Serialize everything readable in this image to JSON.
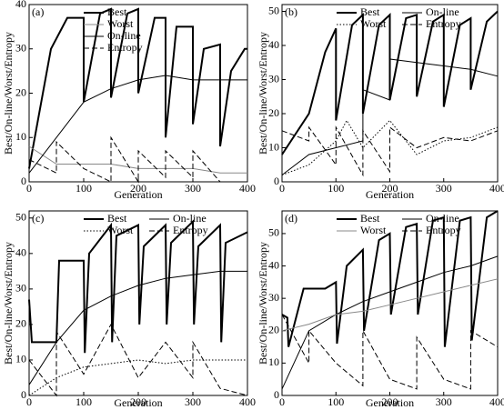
{
  "chart_data": [
    {
      "type": "line",
      "label": "(a)",
      "x_label": "Generation",
      "y_label": "Best/On-line/Worst/Entropy",
      "xlim": [
        0,
        400
      ],
      "ylim": [
        0,
        40
      ],
      "xticks": [
        0,
        100,
        200,
        300,
        400
      ],
      "yticks": [
        0,
        10,
        20,
        30,
        40
      ],
      "series": [
        {
          "name": "Best",
          "color": "#000000",
          "dash": "solid",
          "linewidth": 2,
          "x": [
            0,
            40,
            70,
            100,
            100,
            130,
            150,
            150,
            180,
            200,
            200,
            230,
            250,
            250,
            270,
            300,
            300,
            320,
            350,
            350,
            370,
            395,
            400
          ],
          "values": [
            3,
            30,
            37,
            37,
            18,
            38,
            39,
            19,
            38,
            39,
            20,
            37,
            37,
            10,
            35,
            35,
            13,
            30,
            31,
            8,
            25,
            30,
            30
          ]
        },
        {
          "name": "Worst",
          "color": "#888888",
          "dash": "solid",
          "linewidth": 1,
          "x": [
            0,
            50,
            100,
            150,
            200,
            250,
            300,
            350,
            400
          ],
          "values": [
            8,
            4,
            4,
            4,
            3,
            3,
            3,
            2,
            2
          ]
        },
        {
          "name": "On-line",
          "color": "#000000",
          "dash": "solid",
          "linewidth": 1,
          "x": [
            0,
            50,
            100,
            150,
            200,
            250,
            300,
            350,
            400
          ],
          "values": [
            2,
            10,
            18,
            21,
            23,
            24,
            23,
            23,
            23
          ]
        },
        {
          "name": "Entropy",
          "color": "#000000",
          "dash": "dashed",
          "linewidth": 1,
          "x": [
            0,
            50,
            50,
            100,
            150,
            150,
            200,
            200,
            250,
            250,
            300,
            300,
            350,
            400
          ],
          "values": [
            5,
            2,
            9,
            3,
            0,
            10,
            0,
            7,
            1,
            7,
            1,
            7,
            0,
            0
          ]
        }
      ]
    },
    {
      "type": "line",
      "label": "(b)",
      "x_label": "Generation",
      "y_label": "Best/On-line/Worst/Entropy",
      "xlim": [
        0,
        400
      ],
      "ylim": [
        0,
        52
      ],
      "xticks": [
        0,
        100,
        200,
        300,
        400
      ],
      "yticks": [
        0,
        10,
        20,
        30,
        40,
        50
      ],
      "series": [
        {
          "name": "Best",
          "color": "#000000",
          "dash": "solid",
          "linewidth": 2,
          "x": [
            0,
            50,
            80,
            100,
            100,
            130,
            150,
            150,
            180,
            200,
            200,
            230,
            250,
            250,
            280,
            300,
            300,
            330,
            350,
            350,
            380,
            400
          ],
          "values": [
            8,
            20,
            38,
            45,
            18,
            46,
            49,
            20,
            46,
            49,
            24,
            48,
            49,
            25,
            47,
            49,
            22,
            46,
            48,
            27,
            47,
            50
          ]
        },
        {
          "name": "On-line",
          "color": "#000000",
          "dash": "solid",
          "linewidth": 1,
          "x": [
            0,
            50,
            100,
            150,
            150,
            200,
            200,
            250,
            300,
            350,
            400
          ],
          "values": [
            2,
            8,
            10,
            12,
            27,
            24,
            36,
            35,
            34,
            33,
            31
          ]
        },
        {
          "name": "Worst",
          "color": "#000000",
          "dash": "dotted",
          "linewidth": 1,
          "x": [
            0,
            50,
            100,
            120,
            150,
            200,
            250,
            300,
            350,
            400
          ],
          "values": [
            2,
            5,
            12,
            18,
            10,
            18,
            8,
            12,
            13,
            16
          ]
        },
        {
          "name": "Entropy",
          "color": "#000000",
          "dash": "dashed",
          "linewidth": 1,
          "x": [
            0,
            50,
            50,
            100,
            100,
            150,
            150,
            200,
            200,
            250,
            300,
            350,
            400
          ],
          "values": [
            15,
            12,
            16,
            5,
            16,
            2,
            15,
            3,
            16,
            10,
            13,
            12,
            15
          ]
        }
      ]
    },
    {
      "type": "line",
      "label": "(c)",
      "x_label": "Generation",
      "y_label": "Best/On-line/Worst/Entropy",
      "xlim": [
        0,
        400
      ],
      "ylim": [
        0,
        52
      ],
      "xticks": [
        0,
        100,
        200,
        300,
        400
      ],
      "yticks": [
        0,
        10,
        20,
        30,
        40,
        50
      ],
      "series": [
        {
          "name": "Best",
          "color": "#000000",
          "dash": "solid",
          "linewidth": 2,
          "x": [
            0,
            5,
            50,
            55,
            100,
            102,
            110,
            150,
            152,
            160,
            200,
            202,
            210,
            250,
            252,
            260,
            300,
            302,
            310,
            350,
            352,
            360,
            400
          ],
          "values": [
            27,
            15,
            15,
            38,
            38,
            12,
            40,
            48,
            15,
            45,
            48,
            20,
            42,
            48,
            20,
            43,
            49,
            20,
            42,
            48,
            15,
            43,
            46
          ]
        },
        {
          "name": "On-line",
          "color": "#000000",
          "dash": "solid",
          "linewidth": 1,
          "x": [
            0,
            50,
            100,
            150,
            200,
            250,
            300,
            350,
            400
          ],
          "values": [
            3,
            15,
            24,
            28,
            31,
            33,
            34,
            35,
            35
          ]
        },
        {
          "name": "Worst",
          "color": "#000000",
          "dash": "dotted",
          "linewidth": 1,
          "x": [
            0,
            50,
            100,
            150,
            200,
            250,
            300,
            350,
            400
          ],
          "values": [
            0,
            5,
            8,
            9,
            10,
            9,
            10,
            10,
            10
          ]
        },
        {
          "name": "Entropy",
          "color": "#000000",
          "dash": "dashed",
          "linewidth": 1,
          "x": [
            0,
            50,
            50,
            100,
            150,
            200,
            250,
            300,
            300,
            350,
            400
          ],
          "values": [
            10,
            0,
            18,
            6,
            20,
            5,
            15,
            5,
            15,
            2,
            0
          ]
        }
      ]
    },
    {
      "type": "line",
      "label": "(d)",
      "x_label": "Generation",
      "y_label": "Best/On-line/Worst/Entropy",
      "xlim": [
        0,
        400
      ],
      "ylim": [
        0,
        57
      ],
      "xticks": [
        0,
        100,
        200,
        300,
        400
      ],
      "yticks": [
        0,
        10,
        20,
        30,
        40,
        50
      ],
      "series": [
        {
          "name": "Best",
          "color": "#000000",
          "dash": "solid",
          "linewidth": 2,
          "x": [
            0,
            10,
            12,
            40,
            80,
            100,
            102,
            120,
            150,
            152,
            180,
            200,
            202,
            230,
            250,
            252,
            280,
            300,
            302,
            330,
            350,
            352,
            380,
            400
          ],
          "values": [
            25,
            24,
            15,
            33,
            33,
            35,
            16,
            40,
            45,
            20,
            48,
            50,
            25,
            52,
            53,
            25,
            54,
            55,
            15,
            54,
            55,
            17,
            55,
            57
          ]
        },
        {
          "name": "On-line",
          "color": "#000000",
          "dash": "solid",
          "linewidth": 1,
          "x": [
            0,
            50,
            100,
            150,
            200,
            250,
            300,
            350,
            400
          ],
          "values": [
            2,
            20,
            25,
            29,
            32,
            35,
            38,
            40,
            43
          ]
        },
        {
          "name": "Worst",
          "color": "#888888",
          "dash": "solid",
          "linewidth": 1,
          "x": [
            0,
            50,
            100,
            150,
            200,
            250,
            300,
            350,
            400
          ],
          "values": [
            20,
            22,
            25,
            26,
            28,
            30,
            32,
            34,
            36
          ]
        },
        {
          "name": "Entropy",
          "color": "#000000",
          "dash": "dashed",
          "linewidth": 1,
          "x": [
            0,
            50,
            50,
            100,
            150,
            150,
            200,
            250,
            250,
            300,
            350,
            350,
            400
          ],
          "values": [
            25,
            10,
            20,
            10,
            3,
            20,
            5,
            2,
            18,
            5,
            2,
            20,
            15
          ]
        }
      ]
    }
  ]
}
